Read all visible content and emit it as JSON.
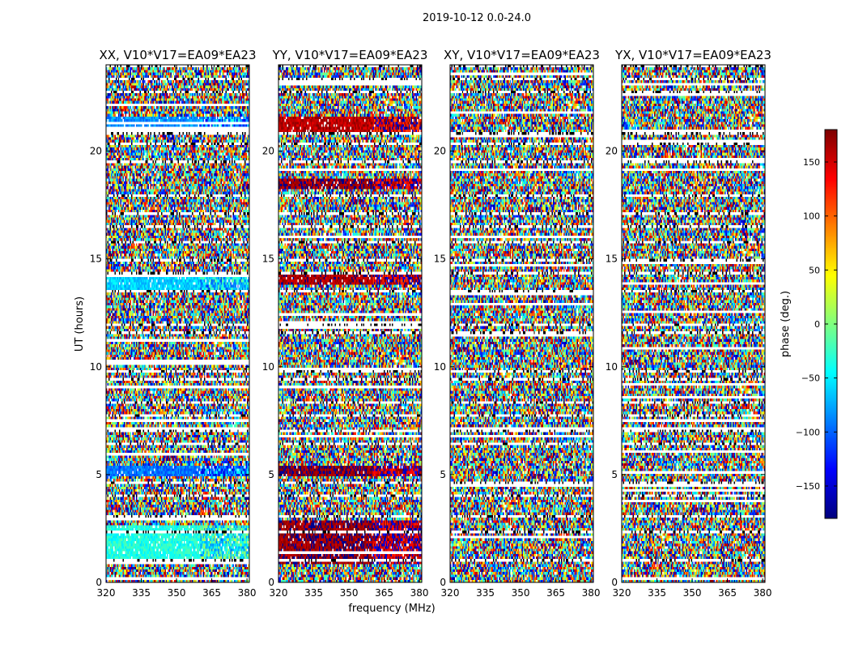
{
  "figure": {
    "suptitle": "2019-10-12 0.0-24.0",
    "xlabel": "frequency (MHz)",
    "ylabel": "UT (hours)",
    "colorbar_label": "phase (deg.)"
  },
  "chart_data": {
    "type": "heatmap",
    "title": "2019-10-12 0.0-24.0",
    "xlabel": "frequency (MHz)",
    "ylabel": "UT (hours)",
    "xlim": [
      320,
      381
    ],
    "ylim": [
      0,
      24
    ],
    "xticks": [
      320,
      335,
      350,
      365,
      380
    ],
    "yticks": [
      0,
      5,
      10,
      15,
      20
    ],
    "colormap": "jet",
    "colorbar": {
      "label": "phase (deg.)",
      "range": [
        -180,
        180
      ],
      "ticks": [
        -150,
        -100,
        -50,
        0,
        50,
        100,
        150
      ]
    },
    "flagged_hours": [
      [
        0.9,
        1.05
      ],
      [
        2.3,
        2.4
      ],
      [
        3.0,
        3.1
      ],
      [
        3.55,
        3.65
      ],
      [
        4.0,
        4.1
      ],
      [
        4.55,
        4.7
      ],
      [
        5.35,
        5.45
      ],
      [
        6.35,
        6.45
      ],
      [
        6.95,
        7.05
      ],
      [
        7.7,
        7.85
      ],
      [
        8.3,
        8.4
      ],
      [
        9.3,
        9.45
      ],
      [
        9.75,
        9.85
      ],
      [
        11.55,
        11.65
      ],
      [
        11.9,
        12.05
      ],
      [
        12.9,
        13.0
      ],
      [
        13.45,
        13.55
      ],
      [
        14.3,
        14.4
      ],
      [
        14.9,
        15.0
      ],
      [
        15.7,
        15.85
      ],
      [
        16.5,
        16.6
      ],
      [
        17.05,
        17.15
      ],
      [
        17.9,
        18.05
      ],
      [
        18.55,
        18.65
      ],
      [
        19.45,
        19.55
      ],
      [
        20.3,
        20.4
      ],
      [
        20.8,
        20.9
      ],
      [
        21.8,
        21.9
      ],
      [
        22.7,
        22.8
      ],
      [
        23.3,
        23.4
      ],
      [
        23.9,
        24.0
      ]
    ],
    "panels": [
      {
        "title": "XX, V10*V17=EA09*EA23",
        "character": "mixed",
        "coherent_bands": [
          {
            "t": [
              1.0,
              2.7
            ],
            "phase": -35
          },
          {
            "t": [
              4.9,
              5.4
            ],
            "phase": -95
          },
          {
            "t": [
              13.6,
              14.3
            ],
            "phase": -60
          },
          {
            "t": [
              21.0,
              21.6
            ],
            "phase": -85
          }
        ]
      },
      {
        "title": "YY, V10*V17=EA09*EA23",
        "character": "mixed",
        "coherent_bands": [
          {
            "t": [
              0.8,
              2.9
            ],
            "phase": 172
          },
          {
            "t": [
              4.9,
              5.4
            ],
            "phase": 175
          },
          {
            "t": [
              13.8,
              14.4
            ],
            "phase": 165
          },
          {
            "t": [
              20.9,
              21.6
            ],
            "phase": 160
          },
          {
            "t": [
              18.3,
              18.7
            ],
            "phase": 170
          }
        ]
      },
      {
        "title": "XY, V10*V17=EA09*EA23",
        "character": "noise",
        "coherent_bands": []
      },
      {
        "title": "YX, V10*V17=EA09*EA23",
        "character": "noise",
        "coherent_bands": []
      }
    ]
  }
}
